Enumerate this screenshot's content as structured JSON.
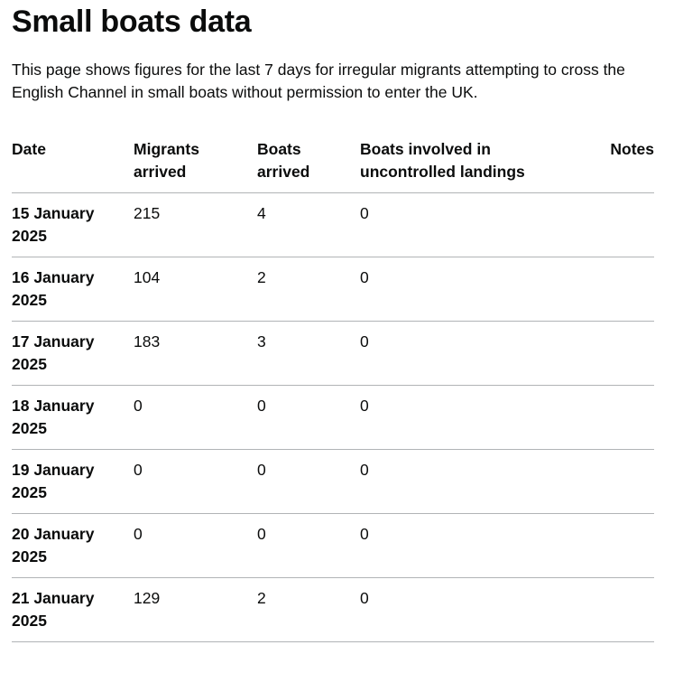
{
  "title": "Small boats data",
  "intro": "This page shows figures for the last 7 days for irregular migrants attempting to cross the English Channel in small boats without permission to enter the UK.",
  "table": {
    "headers": {
      "date": "Date",
      "migrants": "Migrants arrived",
      "boats": "Boats arrived",
      "uncontrolled": "Boats involved in uncontrolled landings",
      "notes": "Notes"
    },
    "rows": [
      {
        "date": "15 January 2025",
        "migrants": "215",
        "boats": "4",
        "uncontrolled": "0",
        "notes": ""
      },
      {
        "date": "16 January 2025",
        "migrants": "104",
        "boats": "2",
        "uncontrolled": "0",
        "notes": ""
      },
      {
        "date": "17 January 2025",
        "migrants": "183",
        "boats": "3",
        "uncontrolled": "0",
        "notes": ""
      },
      {
        "date": "18 January 2025",
        "migrants": "0",
        "boats": "0",
        "uncontrolled": "0",
        "notes": ""
      },
      {
        "date": "19 January 2025",
        "migrants": "0",
        "boats": "0",
        "uncontrolled": "0",
        "notes": ""
      },
      {
        "date": "20 January 2025",
        "migrants": "0",
        "boats": "0",
        "uncontrolled": "0",
        "notes": ""
      },
      {
        "date": "21 January 2025",
        "migrants": "129",
        "boats": "2",
        "uncontrolled": "0",
        "notes": ""
      }
    ]
  }
}
